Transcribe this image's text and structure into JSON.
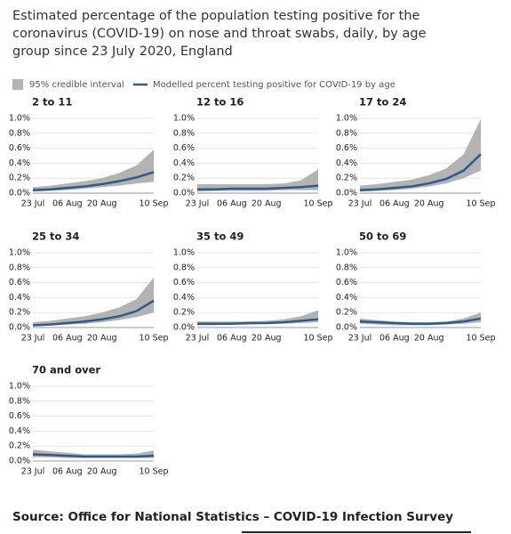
{
  "title": "Estimated percentage of the population testing positive for the coronavirus (COVID-19) on nose and throat swabs, daily, by age group since 23 July 2020, England",
  "legend": {
    "interval": "95% credible interval",
    "line": "Modelled percent testing positive for COVID-19 by age"
  },
  "source": "Source: Office for National Statistics – COVID-19 Infection Survey",
  "chart_data": [
    {
      "type": "line",
      "title": "2 to 11",
      "categories": [
        "23 Jul",
        null,
        "06 Aug",
        null,
        "20 Aug",
        null,
        null,
        "10 Sep"
      ],
      "series": [
        {
          "color": "#2d5a8e",
          "values": [
            0.04,
            0.05,
            0.07,
            0.09,
            0.12,
            0.16,
            0.21,
            0.28
          ]
        }
      ],
      "band": {
        "color": "#b3b3b3",
        "lower": [
          0.02,
          0.03,
          0.04,
          0.06,
          0.08,
          0.1,
          0.13,
          0.15
        ],
        "upper": [
          0.08,
          0.1,
          0.13,
          0.16,
          0.2,
          0.27,
          0.37,
          0.58
        ]
      },
      "ylim": [
        0,
        1
      ],
      "yticks": [
        {
          "value": 0,
          "label": "0.0%"
        },
        {
          "value": 0.2,
          "label": "0.2%"
        },
        {
          "value": 0.4,
          "label": "0.4%"
        },
        {
          "value": 0.6,
          "label": "0.6%"
        },
        {
          "value": 0.8,
          "label": "0.8%"
        },
        {
          "value": 1,
          "label": "1.0%"
        }
      ],
      "grid": true
    },
    {
      "type": "line",
      "title": "12 to 16",
      "categories": [
        "23 Jul",
        null,
        "06 Aug",
        null,
        "20 Aug",
        null,
        null,
        "10 Sep"
      ],
      "series": [
        {
          "color": "#2d5a8e",
          "values": [
            0.05,
            0.05,
            0.06,
            0.06,
            0.06,
            0.07,
            0.08,
            0.1
          ]
        }
      ],
      "band": {
        "color": "#b3b3b3",
        "lower": [
          0.02,
          0.03,
          0.03,
          0.03,
          0.03,
          0.04,
          0.04,
          0.04
        ],
        "upper": [
          0.12,
          0.12,
          0.12,
          0.12,
          0.12,
          0.13,
          0.17,
          0.32
        ]
      },
      "ylim": [
        0,
        1
      ],
      "yticks": [
        {
          "value": 0,
          "label": "0.0%"
        },
        {
          "value": 0.2,
          "label": "0.2%"
        },
        {
          "value": 0.4,
          "label": "0.4%"
        },
        {
          "value": 0.6,
          "label": "0.6%"
        },
        {
          "value": 0.8,
          "label": "0.8%"
        },
        {
          "value": 1,
          "label": "1.0%"
        }
      ],
      "grid": true
    },
    {
      "type": "line",
      "title": "17 to 24",
      "categories": [
        "23 Jul",
        null,
        "06 Aug",
        null,
        "20 Aug",
        null,
        null,
        "10 Sep"
      ],
      "series": [
        {
          "color": "#2d5a8e",
          "values": [
            0.04,
            0.05,
            0.07,
            0.09,
            0.13,
            0.19,
            0.3,
            0.52
          ]
        }
      ],
      "band": {
        "color": "#b3b3b3",
        "lower": [
          0.02,
          0.03,
          0.04,
          0.06,
          0.09,
          0.13,
          0.2,
          0.3
        ],
        "upper": [
          0.1,
          0.12,
          0.15,
          0.18,
          0.24,
          0.33,
          0.52,
          0.99
        ]
      },
      "ylim": [
        0,
        1
      ],
      "yticks": [
        {
          "value": 0,
          "label": "0.0%"
        },
        {
          "value": 0.2,
          "label": "0.2%"
        },
        {
          "value": 0.4,
          "label": "0.4%"
        },
        {
          "value": 0.6,
          "label": "0.6%"
        },
        {
          "value": 0.8,
          "label": "0.8%"
        },
        {
          "value": 1,
          "label": "1.0%"
        }
      ],
      "grid": true
    },
    {
      "type": "line",
      "title": "25 to 34",
      "categories": [
        "23 Jul",
        null,
        "06 Aug",
        null,
        "20 Aug",
        null,
        null,
        "10 Sep"
      ],
      "series": [
        {
          "color": "#2d5a8e",
          "values": [
            0.03,
            0.04,
            0.06,
            0.08,
            0.11,
            0.15,
            0.22,
            0.36
          ]
        }
      ],
      "band": {
        "color": "#b3b3b3",
        "lower": [
          0.02,
          0.03,
          0.04,
          0.05,
          0.07,
          0.1,
          0.14,
          0.2
        ],
        "upper": [
          0.07,
          0.09,
          0.12,
          0.15,
          0.2,
          0.27,
          0.38,
          0.67
        ]
      },
      "ylim": [
        0,
        1
      ],
      "yticks": [
        {
          "value": 0,
          "label": "0.0%"
        },
        {
          "value": 0.2,
          "label": "0.2%"
        },
        {
          "value": 0.4,
          "label": "0.4%"
        },
        {
          "value": 0.6,
          "label": "0.6%"
        },
        {
          "value": 0.8,
          "label": "0.8%"
        },
        {
          "value": 1,
          "label": "1.0%"
        }
      ],
      "grid": true
    },
    {
      "type": "line",
      "title": "35 to 49",
      "categories": [
        "23 Jul",
        null,
        "06 Aug",
        null,
        "20 Aug",
        null,
        null,
        "10 Sep"
      ],
      "series": [
        {
          "color": "#2d5a8e",
          "values": [
            0.05,
            0.05,
            0.05,
            0.06,
            0.06,
            0.07,
            0.09,
            0.11
          ]
        }
      ],
      "band": {
        "color": "#b3b3b3",
        "lower": [
          0.03,
          0.03,
          0.04,
          0.04,
          0.05,
          0.05,
          0.06,
          0.07
        ],
        "upper": [
          0.08,
          0.08,
          0.08,
          0.08,
          0.09,
          0.11,
          0.15,
          0.23
        ]
      },
      "ylim": [
        0,
        1
      ],
      "yticks": [
        {
          "value": 0,
          "label": "0.0%"
        },
        {
          "value": 0.2,
          "label": "0.2%"
        },
        {
          "value": 0.4,
          "label": "0.4%"
        },
        {
          "value": 0.6,
          "label": "0.6%"
        },
        {
          "value": 0.8,
          "label": "0.8%"
        },
        {
          "value": 1,
          "label": "1.0%"
        }
      ],
      "grid": true
    },
    {
      "type": "line",
      "title": "50 to 69",
      "categories": [
        "23 Jul",
        null,
        "06 Aug",
        null,
        "20 Aug",
        null,
        null,
        "10 Sep"
      ],
      "series": [
        {
          "color": "#2d5a8e",
          "values": [
            0.08,
            0.07,
            0.06,
            0.05,
            0.05,
            0.06,
            0.08,
            0.12
          ]
        }
      ],
      "band": {
        "color": "#b3b3b3",
        "lower": [
          0.05,
          0.04,
          0.03,
          0.03,
          0.03,
          0.04,
          0.05,
          0.07
        ],
        "upper": [
          0.12,
          0.1,
          0.08,
          0.07,
          0.07,
          0.08,
          0.12,
          0.2
        ]
      },
      "ylim": [
        0,
        1
      ],
      "yticks": [
        {
          "value": 0,
          "label": "0.0%"
        },
        {
          "value": 0.2,
          "label": "0.2%"
        },
        {
          "value": 0.4,
          "label": "0.4%"
        },
        {
          "value": 0.6,
          "label": "0.6%"
        },
        {
          "value": 0.8,
          "label": "0.8%"
        },
        {
          "value": 1,
          "label": "1.0%"
        }
      ],
      "grid": true
    },
    {
      "type": "line",
      "title": "70 and over",
      "categories": [
        "23 Jul",
        null,
        "06 Aug",
        null,
        "20 Aug",
        null,
        null,
        "10 Sep"
      ],
      "series": [
        {
          "color": "#2d5a8e",
          "values": [
            0.09,
            0.08,
            0.07,
            0.06,
            0.06,
            0.06,
            0.06,
            0.07
          ]
        }
      ],
      "band": {
        "color": "#b3b3b3",
        "lower": [
          0.05,
          0.05,
          0.04,
          0.04,
          0.04,
          0.04,
          0.04,
          0.04
        ],
        "upper": [
          0.15,
          0.13,
          0.11,
          0.09,
          0.09,
          0.09,
          0.1,
          0.14
        ]
      },
      "ylim": [
        0,
        1
      ],
      "yticks": [
        {
          "value": 0,
          "label": "0.0%"
        },
        {
          "value": 0.2,
          "label": "0.2%"
        },
        {
          "value": 0.4,
          "label": "0.4%"
        },
        {
          "value": 0.6,
          "label": "0.6%"
        },
        {
          "value": 0.8,
          "label": "0.8%"
        },
        {
          "value": 1,
          "label": "1.0%"
        }
      ],
      "grid": true
    }
  ]
}
